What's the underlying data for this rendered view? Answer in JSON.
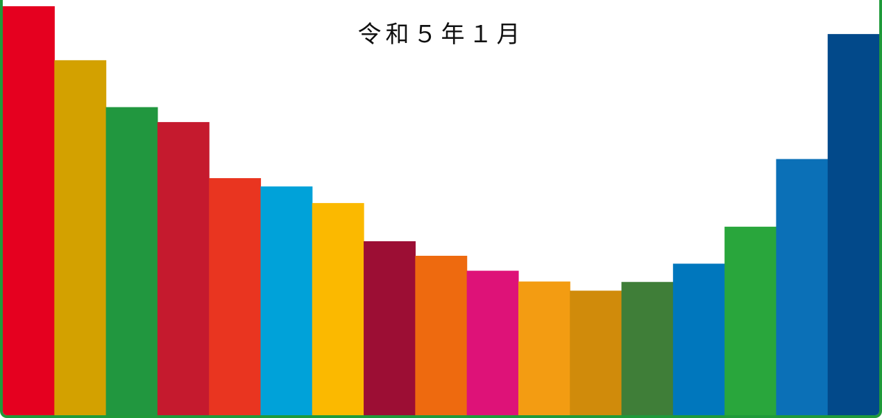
{
  "banner": {
    "title": "令和５年１月",
    "bar_colors": [
      "#e5001f",
      "#d3a100",
      "#21973f",
      "#c51a2e",
      "#e93520",
      "#00a2d9",
      "#fbb900",
      "#9c0e34",
      "#ee6a0f",
      "#de1278",
      "#f39c12",
      "#d08b0b",
      "#3f7e38",
      "#0077bd",
      "#29a63c",
      "#0b70b7",
      "#02498a"
    ],
    "bar_levels": [
      0.985,
      0.855,
      0.742,
      0.706,
      0.571,
      0.551,
      0.511,
      0.419,
      0.384,
      0.348,
      0.322,
      0.3,
      0.321,
      0.365,
      0.454,
      0.617,
      0.918
    ]
  }
}
